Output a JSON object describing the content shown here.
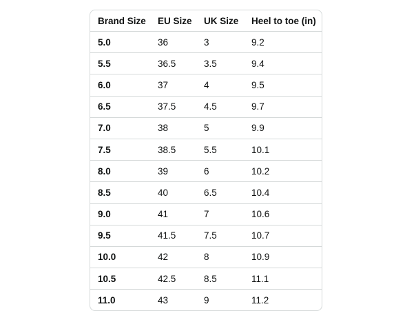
{
  "table": {
    "header": [
      "Brand Size",
      "EU Size",
      "UK Size",
      "Heel to toe (in)"
    ],
    "rows": [
      [
        "5.0",
        "36",
        "3",
        "9.2"
      ],
      [
        "5.5",
        "36.5",
        "3.5",
        "9.4"
      ],
      [
        "6.0",
        "37",
        "4",
        "9.5"
      ],
      [
        "6.5",
        "37.5",
        "4.5",
        "9.7"
      ],
      [
        "7.0",
        "38",
        "5",
        "9.9"
      ],
      [
        "7.5",
        "38.5",
        "5.5",
        "10.1"
      ],
      [
        "8.0",
        "39",
        "6",
        "10.2"
      ],
      [
        "8.5",
        "40",
        "6.5",
        "10.4"
      ],
      [
        "9.0",
        "41",
        "7",
        "10.6"
      ],
      [
        "9.5",
        "41.5",
        "7.5",
        "10.7"
      ],
      [
        "10.0",
        "42",
        "8",
        "10.9"
      ],
      [
        "10.5",
        "42.5",
        "8.5",
        "11.1"
      ],
      [
        "11.0",
        "43",
        "9",
        "11.2"
      ]
    ]
  }
}
